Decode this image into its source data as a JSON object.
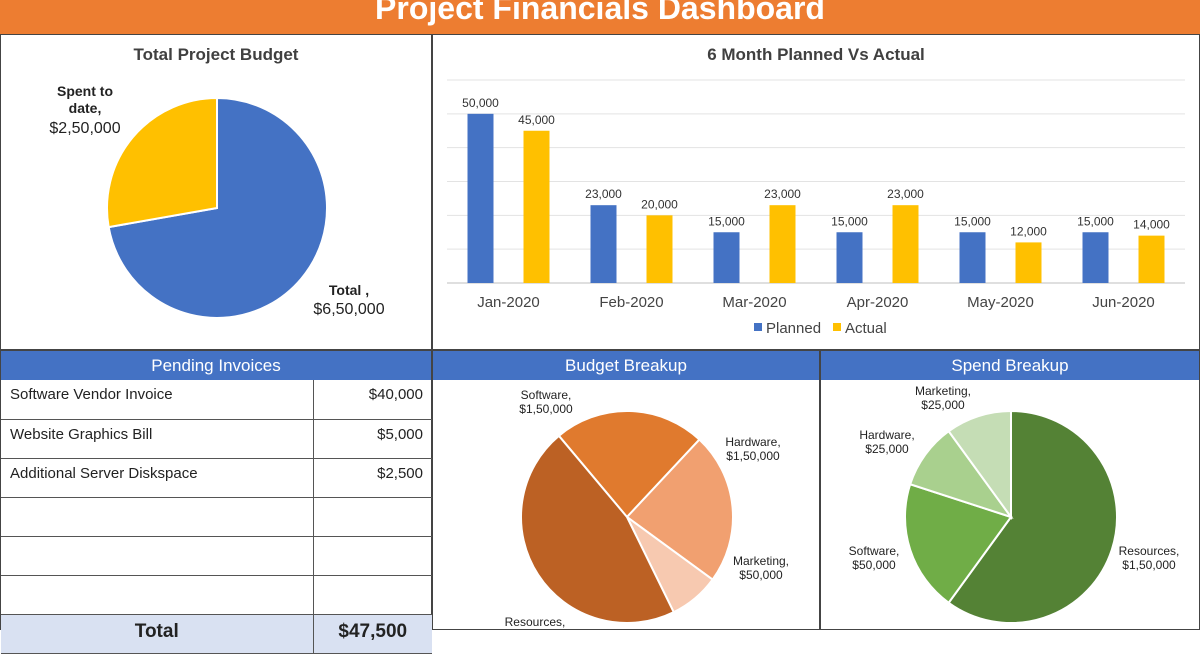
{
  "header": {
    "title": "Project Financials Dashboard"
  },
  "colors": {
    "banner": "#ED7D31",
    "planned": "#4472C4",
    "actual": "#FFC000",
    "header_bar": "#4472C4",
    "total_row": "#D9E1F2"
  },
  "chart_data": [
    {
      "type": "pie",
      "title": "Total Project Budget",
      "labels": [
        "Total ,",
        "Spent to date,"
      ],
      "values": [
        650000,
        250000
      ],
      "value_labels": [
        "$6,50,000",
        "$2,50,000"
      ],
      "colors": [
        "#4472C4",
        "#FFC000"
      ]
    },
    {
      "type": "bar",
      "title": "6 Month Planned Vs Actual",
      "categories": [
        "Jan-2020",
        "Feb-2020",
        "Mar-2020",
        "Apr-2020",
        "May-2020",
        "Jun-2020"
      ],
      "series": [
        {
          "name": "Planned",
          "values": [
            50000,
            23000,
            15000,
            15000,
            15000,
            15000
          ],
          "color": "#4472C4"
        },
        {
          "name": "Actual",
          "values": [
            45000,
            20000,
            23000,
            23000,
            12000,
            14000
          ],
          "color": "#FFC000"
        }
      ],
      "ylim": [
        0,
        60000
      ],
      "grid": true,
      "legend": "bottom"
    },
    {
      "type": "pie",
      "title": "Budget Breakup",
      "labels": [
        "Software,",
        "Hardware,",
        "Marketing,",
        "Resources,"
      ],
      "values": [
        150000,
        150000,
        50000,
        300000
      ],
      "value_labels": [
        "$1,50,000",
        "$1,50,000",
        "$50,000",
        ""
      ],
      "colors": [
        "#E07A2E",
        "#F1A070",
        "#F7C9B0",
        "#BC6124"
      ]
    },
    {
      "type": "pie",
      "title": "Spend Breakup",
      "labels": [
        "Resources,",
        "Software,",
        "Hardware,",
        "Marketing,"
      ],
      "values": [
        150000,
        50000,
        25000,
        25000
      ],
      "value_labels": [
        "$1,50,000",
        "$50,000",
        "$25,000",
        "$25,000"
      ],
      "colors": [
        "#548235",
        "#70AD47",
        "#A9D08E",
        "#C5DDB5"
      ]
    }
  ],
  "pending_invoices": {
    "title": "Pending Invoices",
    "rows": [
      {
        "name": "Software Vendor Invoice",
        "amount": "$40,000"
      },
      {
        "name": "Website Graphics Bill",
        "amount": "$5,000"
      },
      {
        "name": "Additional Server Diskspace",
        "amount": "$2,500"
      },
      {
        "name": "",
        "amount": ""
      },
      {
        "name": "",
        "amount": ""
      },
      {
        "name": "",
        "amount": ""
      }
    ],
    "total_label": "Total",
    "total_amount": "$47,500"
  }
}
